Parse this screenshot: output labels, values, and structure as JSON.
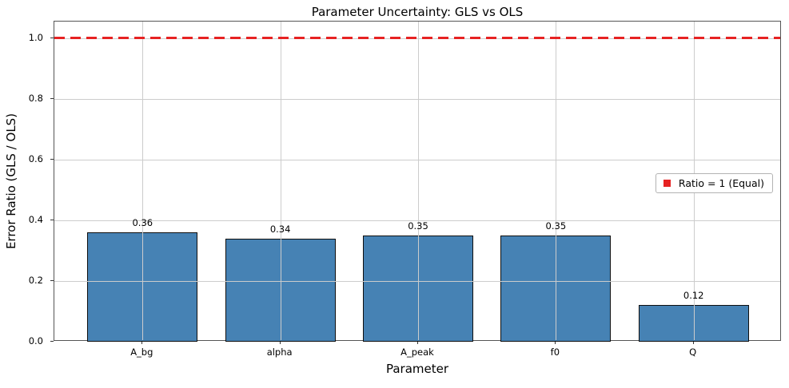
{
  "chart_data": {
    "type": "bar",
    "title": "Parameter Uncertainty: GLS vs OLS",
    "xlabel": "Parameter",
    "ylabel": "Error Ratio (GLS / OLS)",
    "categories": [
      "A_bg",
      "alpha",
      "A_peak",
      "f0",
      "Q"
    ],
    "values": [
      0.36,
      0.34,
      0.35,
      0.35,
      0.12
    ],
    "bar_value_labels": [
      "0.36",
      "0.34",
      "0.35",
      "0.35",
      "0.12"
    ],
    "yticks": [
      "0.0",
      "0.2",
      "0.4",
      "0.6",
      "0.8",
      "1.0"
    ],
    "ylim": [
      0,
      1.055
    ],
    "grid": true,
    "legend_position": "center right",
    "legend": [
      {
        "label": "Ratio = 1 (Equal)",
        "marker": "red-square"
      }
    ],
    "reference_line": {
      "y": 1.0,
      "style": "dashed",
      "label": "Ratio = 1 (Equal)"
    },
    "colors": {
      "bar_fill": "#4682b4",
      "bar_edge": "#0f0f0f",
      "reference_red": "#e62222",
      "grid": "#cccccc"
    }
  }
}
